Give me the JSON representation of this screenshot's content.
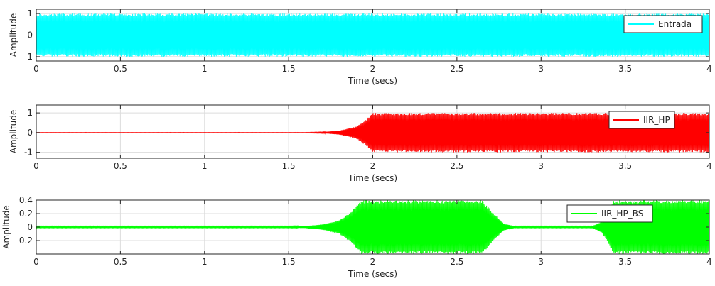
{
  "chart_data": [
    {
      "type": "line",
      "xlabel": "Time (secs)",
      "ylabel": "Amplitude",
      "xlim": [
        0,
        4
      ],
      "ylim": [
        -1.2,
        1.2
      ],
      "xticks": [
        "0",
        "0.5",
        "1",
        "1.5",
        "2",
        "2.5",
        "3",
        "3.5",
        "4"
      ],
      "yticks": [
        "-1",
        "0",
        "1"
      ],
      "grid": true,
      "legend_placement": "top-right",
      "series": [
        {
          "name": "Entrada",
          "color": "#00ffff",
          "envelope": [
            [
              0,
              1.0
            ],
            [
              4,
              1.0
            ]
          ]
        }
      ]
    },
    {
      "type": "line",
      "xlabel": "Time (secs)",
      "ylabel": "Amplitude",
      "xlim": [
        0,
        4
      ],
      "ylim": [
        -1.3,
        1.4
      ],
      "xticks": [
        "0",
        "0.5",
        "1",
        "1.5",
        "2",
        "2.5",
        "3",
        "3.5",
        "4"
      ],
      "yticks": [
        "-1",
        "0",
        "1"
      ],
      "grid": true,
      "legend_placement": "top-right",
      "series": [
        {
          "name": "IIR_HP",
          "color": "#ff0000",
          "envelope": [
            [
              0,
              0.01
            ],
            [
              1.6,
              0.01
            ],
            [
              1.7,
              0.03
            ],
            [
              1.8,
              0.1
            ],
            [
              1.9,
              0.3
            ],
            [
              1.95,
              0.6
            ],
            [
              2.0,
              1.0
            ],
            [
              4,
              1.0
            ]
          ]
        }
      ]
    },
    {
      "type": "line",
      "xlabel": "Time (secs)",
      "ylabel": "Amplitude",
      "xlim": [
        0,
        4
      ],
      "ylim": [
        -0.4,
        0.4
      ],
      "xticks": [
        "0",
        "0.5",
        "1",
        "1.5",
        "2",
        "2.5",
        "3",
        "3.5",
        "4"
      ],
      "yticks": [
        "-0.2",
        "0",
        "0.2",
        "0.4"
      ],
      "grid": true,
      "legend_placement": "top-right",
      "series": [
        {
          "name": "IIR_HP_BS",
          "color": "#00ff00",
          "envelope": [
            [
              0,
              0.01
            ],
            [
              1.5,
              0.01
            ],
            [
              1.6,
              0.015
            ],
            [
              1.7,
              0.04
            ],
            [
              1.8,
              0.1
            ],
            [
              1.88,
              0.25
            ],
            [
              1.93,
              0.4
            ],
            [
              2.65,
              0.4
            ],
            [
              2.72,
              0.2
            ],
            [
              2.78,
              0.05
            ],
            [
              2.85,
              0.01
            ],
            [
              3.3,
              0.01
            ],
            [
              3.36,
              0.08
            ],
            [
              3.4,
              0.25
            ],
            [
              3.43,
              0.4
            ],
            [
              4,
              0.4
            ]
          ]
        }
      ]
    }
  ]
}
